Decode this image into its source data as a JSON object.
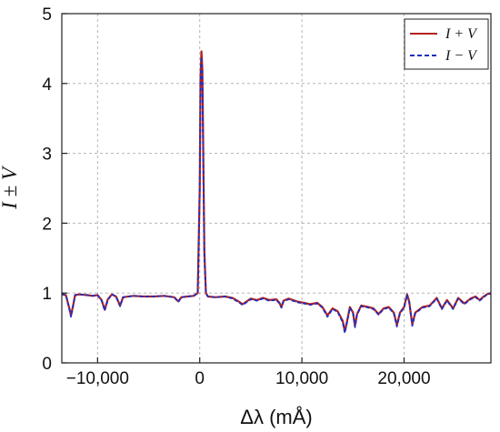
{
  "chart_data": {
    "type": "line",
    "xlabel": "Δλ (mÅ)",
    "ylabel": "I ± V",
    "xlim": [
      -13500,
      28500
    ],
    "ylim": [
      0,
      5
    ],
    "xticks": [
      -10000,
      0,
      10000,
      20000
    ],
    "xtick_labels": [
      "−10,000",
      "0",
      "10,000",
      "20,000"
    ],
    "yticks": [
      0,
      1,
      2,
      3,
      4,
      5
    ],
    "ytick_labels": [
      "0",
      "1",
      "2",
      "3",
      "4",
      "5"
    ],
    "grid": true,
    "legend_position": "top-right",
    "series": [
      {
        "name": "I + V",
        "color": "#b22222",
        "style": "solid",
        "points": [
          [
            -13500,
            0.98
          ],
          [
            -13100,
            0.97
          ],
          [
            -12800,
            0.8
          ],
          [
            -12600,
            0.68
          ],
          [
            -12400,
            0.82
          ],
          [
            -12200,
            0.97
          ],
          [
            -11800,
            0.98
          ],
          [
            -11000,
            0.97
          ],
          [
            -10500,
            0.96
          ],
          [
            -10000,
            0.97
          ],
          [
            -9600,
            0.9
          ],
          [
            -9300,
            0.76
          ],
          [
            -9000,
            0.91
          ],
          [
            -8600,
            0.98
          ],
          [
            -8200,
            0.95
          ],
          [
            -7800,
            0.82
          ],
          [
            -7500,
            0.94
          ],
          [
            -6500,
            0.96
          ],
          [
            -5500,
            0.95
          ],
          [
            -4500,
            0.95
          ],
          [
            -3500,
            0.96
          ],
          [
            -2500,
            0.94
          ],
          [
            -2100,
            0.88
          ],
          [
            -1800,
            0.94
          ],
          [
            -1200,
            0.95
          ],
          [
            -600,
            0.96
          ],
          [
            -200,
            1.0
          ],
          [
            0,
            2.5
          ],
          [
            80,
            4.1
          ],
          [
            170,
            4.46
          ],
          [
            260,
            4.2
          ],
          [
            350,
            3.0
          ],
          [
            450,
            1.6
          ],
          [
            600,
            1.0
          ],
          [
            800,
            0.95
          ],
          [
            1500,
            0.94
          ],
          [
            2500,
            0.95
          ],
          [
            3200,
            0.93
          ],
          [
            3800,
            0.88
          ],
          [
            4200,
            0.84
          ],
          [
            4600,
            0.88
          ],
          [
            5000,
            0.92
          ],
          [
            5600,
            0.9
          ],
          [
            6200,
            0.93
          ],
          [
            6800,
            0.9
          ],
          [
            7500,
            0.91
          ],
          [
            7800,
            0.86
          ],
          [
            8000,
            0.8
          ],
          [
            8200,
            0.89
          ],
          [
            8700,
            0.92
          ],
          [
            9500,
            0.88
          ],
          [
            10200,
            0.86
          ],
          [
            10800,
            0.84
          ],
          [
            11500,
            0.86
          ],
          [
            12000,
            0.8
          ],
          [
            12500,
            0.68
          ],
          [
            13000,
            0.78
          ],
          [
            13500,
            0.74
          ],
          [
            14000,
            0.6
          ],
          [
            14200,
            0.45
          ],
          [
            14400,
            0.58
          ],
          [
            14700,
            0.8
          ],
          [
            15000,
            0.72
          ],
          [
            15200,
            0.53
          ],
          [
            15400,
            0.7
          ],
          [
            15800,
            0.82
          ],
          [
            16500,
            0.8
          ],
          [
            17000,
            0.78
          ],
          [
            17500,
            0.7
          ],
          [
            18000,
            0.78
          ],
          [
            18500,
            0.8
          ],
          [
            19000,
            0.72
          ],
          [
            19300,
            0.54
          ],
          [
            19600,
            0.72
          ],
          [
            20000,
            0.8
          ],
          [
            20300,
            0.98
          ],
          [
            20500,
            0.88
          ],
          [
            20800,
            0.55
          ],
          [
            21100,
            0.72
          ],
          [
            21800,
            0.8
          ],
          [
            22500,
            0.82
          ],
          [
            23200,
            0.93
          ],
          [
            23700,
            0.78
          ],
          [
            24200,
            0.9
          ],
          [
            24800,
            0.78
          ],
          [
            25300,
            0.93
          ],
          [
            25900,
            0.85
          ],
          [
            26500,
            0.92
          ],
          [
            27000,
            0.95
          ],
          [
            27400,
            0.9
          ],
          [
            27800,
            0.95
          ],
          [
            28200,
            0.99
          ],
          [
            28500,
            0.99
          ]
        ]
      },
      {
        "name": "I − V",
        "color": "#1f2fbf",
        "style": "dashed",
        "points": [
          [
            -13500,
            0.99
          ],
          [
            -13100,
            0.97
          ],
          [
            -12800,
            0.79
          ],
          [
            -12600,
            0.66
          ],
          [
            -12400,
            0.81
          ],
          [
            -12200,
            0.97
          ],
          [
            -11800,
            0.98
          ],
          [
            -11000,
            0.97
          ],
          [
            -10500,
            0.96
          ],
          [
            -10000,
            0.97
          ],
          [
            -9600,
            0.89
          ],
          [
            -9300,
            0.75
          ],
          [
            -9000,
            0.9
          ],
          [
            -8600,
            0.98
          ],
          [
            -8200,
            0.95
          ],
          [
            -7800,
            0.81
          ],
          [
            -7500,
            0.94
          ],
          [
            -6500,
            0.96
          ],
          [
            -5500,
            0.95
          ],
          [
            -4500,
            0.95
          ],
          [
            -3500,
            0.96
          ],
          [
            -2500,
            0.94
          ],
          [
            -2100,
            0.87
          ],
          [
            -1800,
            0.94
          ],
          [
            -1200,
            0.95
          ],
          [
            -600,
            0.96
          ],
          [
            -200,
            1.0
          ],
          [
            0,
            2.4
          ],
          [
            80,
            4.0
          ],
          [
            170,
            4.38
          ],
          [
            260,
            4.1
          ],
          [
            350,
            2.9
          ],
          [
            450,
            1.5
          ],
          [
            600,
            1.0
          ],
          [
            800,
            0.95
          ],
          [
            1500,
            0.94
          ],
          [
            2500,
            0.95
          ],
          [
            3200,
            0.92
          ],
          [
            3800,
            0.87
          ],
          [
            4200,
            0.83
          ],
          [
            4600,
            0.87
          ],
          [
            5000,
            0.91
          ],
          [
            5600,
            0.89
          ],
          [
            6200,
            0.92
          ],
          [
            6800,
            0.89
          ],
          [
            7500,
            0.9
          ],
          [
            7800,
            0.85
          ],
          [
            8000,
            0.79
          ],
          [
            8200,
            0.88
          ],
          [
            8700,
            0.91
          ],
          [
            9500,
            0.87
          ],
          [
            10200,
            0.85
          ],
          [
            10800,
            0.83
          ],
          [
            11500,
            0.85
          ],
          [
            12000,
            0.79
          ],
          [
            12500,
            0.66
          ],
          [
            13000,
            0.77
          ],
          [
            13500,
            0.73
          ],
          [
            14000,
            0.58
          ],
          [
            14200,
            0.43
          ],
          [
            14400,
            0.56
          ],
          [
            14700,
            0.79
          ],
          [
            15000,
            0.71
          ],
          [
            15200,
            0.51
          ],
          [
            15400,
            0.69
          ],
          [
            15800,
            0.81
          ],
          [
            16500,
            0.79
          ],
          [
            17000,
            0.77
          ],
          [
            17500,
            0.69
          ],
          [
            18000,
            0.77
          ],
          [
            18500,
            0.79
          ],
          [
            19000,
            0.71
          ],
          [
            19300,
            0.52
          ],
          [
            19600,
            0.71
          ],
          [
            20000,
            0.79
          ],
          [
            20300,
            0.97
          ],
          [
            20500,
            0.87
          ],
          [
            20800,
            0.53
          ],
          [
            21100,
            0.71
          ],
          [
            21800,
            0.79
          ],
          [
            22500,
            0.81
          ],
          [
            23200,
            0.92
          ],
          [
            23700,
            0.77
          ],
          [
            24200,
            0.89
          ],
          [
            24800,
            0.77
          ],
          [
            25300,
            0.92
          ],
          [
            25900,
            0.84
          ],
          [
            26500,
            0.91
          ],
          [
            27000,
            0.94
          ],
          [
            27400,
            0.89
          ],
          [
            27800,
            0.94
          ],
          [
            28200,
            0.99
          ],
          [
            28500,
            1.0
          ]
        ]
      }
    ]
  }
}
